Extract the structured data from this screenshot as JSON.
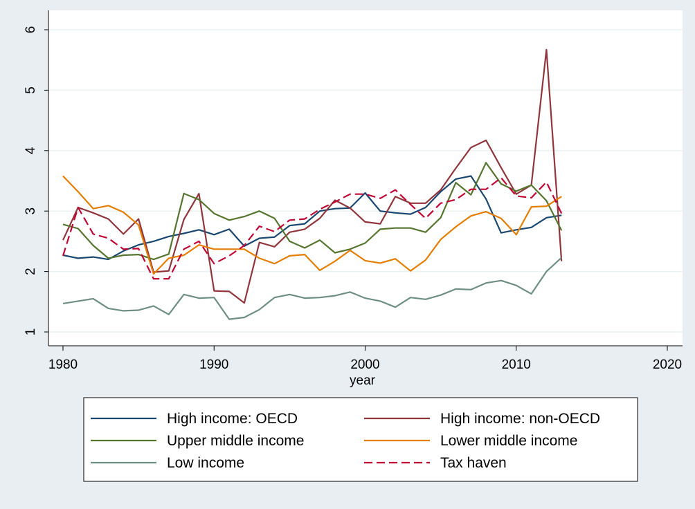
{
  "chart_data": {
    "type": "line",
    "title": "",
    "xlabel": "year",
    "ylabel": "",
    "xlim": [
      1980,
      2020
    ],
    "ylim": [
      1,
      6
    ],
    "x_ticks": [
      1980,
      1990,
      2000,
      2010,
      2020
    ],
    "y_ticks": [
      1,
      2,
      3,
      4,
      5,
      6
    ],
    "grid": "horizontal",
    "legend_position": "bottom",
    "x": [
      1980,
      1981,
      1982,
      1983,
      1984,
      1985,
      1986,
      1987,
      1988,
      1989,
      1990,
      1991,
      1992,
      1993,
      1994,
      1995,
      1996,
      1997,
      1998,
      1999,
      2000,
      2001,
      2002,
      2003,
      2004,
      2005,
      2006,
      2007,
      2008,
      2009,
      2010,
      2011,
      2012,
      2013
    ],
    "series": [
      {
        "name": "High income: OECD",
        "color": "#1a476f",
        "dash": "solid",
        "values": [
          2.27,
          2.22,
          2.24,
          2.2,
          2.34,
          2.44,
          2.5,
          2.58,
          2.63,
          2.69,
          2.61,
          2.7,
          2.42,
          2.55,
          2.57,
          2.76,
          2.79,
          3.0,
          3.04,
          3.05,
          3.3,
          3.0,
          2.97,
          2.95,
          3.06,
          3.32,
          3.53,
          3.58,
          3.2,
          2.64,
          2.69,
          2.73,
          2.89,
          2.93
        ]
      },
      {
        "name": "High income: non-OECD",
        "color": "#90353b",
        "dash": "solid",
        "values": [
          2.52,
          3.06,
          2.97,
          2.87,
          2.62,
          2.87,
          1.99,
          2.01,
          2.86,
          3.29,
          1.68,
          1.67,
          1.48,
          2.48,
          2.41,
          2.65,
          2.7,
          2.88,
          3.18,
          3.05,
          2.82,
          2.79,
          3.24,
          3.13,
          3.13,
          3.35,
          3.71,
          4.05,
          4.17,
          3.72,
          3.28,
          3.43,
          5.67,
          2.17
        ]
      },
      {
        "name": "Upper middle income",
        "color": "#55752f",
        "dash": "solid",
        "values": [
          2.78,
          2.71,
          2.43,
          2.22,
          2.27,
          2.28,
          2.2,
          2.29,
          3.29,
          3.19,
          2.96,
          2.85,
          2.91,
          3.0,
          2.88,
          2.5,
          2.39,
          2.52,
          2.31,
          2.37,
          2.47,
          2.7,
          2.72,
          2.72,
          2.65,
          2.89,
          3.47,
          3.27,
          3.8,
          3.45,
          3.33,
          3.43,
          3.17,
          2.68
        ]
      },
      {
        "name": "Lower middle income",
        "color": "#e37e00",
        "dash": "solid",
        "values": [
          3.58,
          3.32,
          3.04,
          3.09,
          2.98,
          2.77,
          1.96,
          2.22,
          2.27,
          2.44,
          2.37,
          2.37,
          2.37,
          2.22,
          2.13,
          2.26,
          2.28,
          2.02,
          2.17,
          2.35,
          2.18,
          2.14,
          2.21,
          2.01,
          2.19,
          2.53,
          2.74,
          2.92,
          2.99,
          2.88,
          2.61,
          3.07,
          3.08,
          3.24
        ]
      },
      {
        "name": "Low income",
        "color": "#6e8e84",
        "dash": "solid",
        "values": [
          1.47,
          1.51,
          1.55,
          1.39,
          1.35,
          1.36,
          1.43,
          1.29,
          1.62,
          1.56,
          1.57,
          1.21,
          1.24,
          1.37,
          1.57,
          1.62,
          1.56,
          1.57,
          1.6,
          1.66,
          1.56,
          1.51,
          1.41,
          1.57,
          1.54,
          1.61,
          1.71,
          1.7,
          1.81,
          1.85,
          1.77,
          1.63,
          2.0,
          2.23
        ]
      },
      {
        "name": "Tax haven",
        "color": "#c10534",
        "dash": "dashed",
        "values": [
          2.26,
          3.06,
          2.62,
          2.55,
          2.37,
          2.38,
          1.88,
          1.88,
          2.37,
          2.5,
          2.13,
          2.26,
          2.43,
          2.75,
          2.66,
          2.85,
          2.87,
          3.03,
          3.15,
          3.28,
          3.28,
          3.21,
          3.35,
          3.11,
          2.88,
          3.13,
          3.19,
          3.36,
          3.36,
          3.55,
          3.25,
          3.22,
          3.48,
          2.96
        ]
      }
    ]
  }
}
